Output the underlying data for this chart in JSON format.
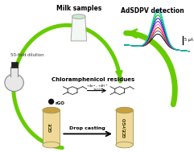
{
  "bg_color": "#ffffff",
  "milk_label": "Milk samples",
  "dilution_label": "50-fold dilution",
  "detection_label": "AdSDPV detection",
  "residues_label": "Chloramphenicol residues",
  "drop_casting_label": "Drop casting",
  "rgo_label": "rGO",
  "scale_label": "5 μA",
  "gce_label": "GCE",
  "gcergo_label": "GCE/rGO",
  "curve_colors": [
    "#000000",
    "#555555",
    "#ff0000",
    "#ff69b4",
    "#8800cc",
    "#0000ff",
    "#009900",
    "#00cc66",
    "#00cccc"
  ],
  "arrow_color": "#66cc00",
  "electrode_color": "#f0d898",
  "electrode_dark": "#c8a040"
}
